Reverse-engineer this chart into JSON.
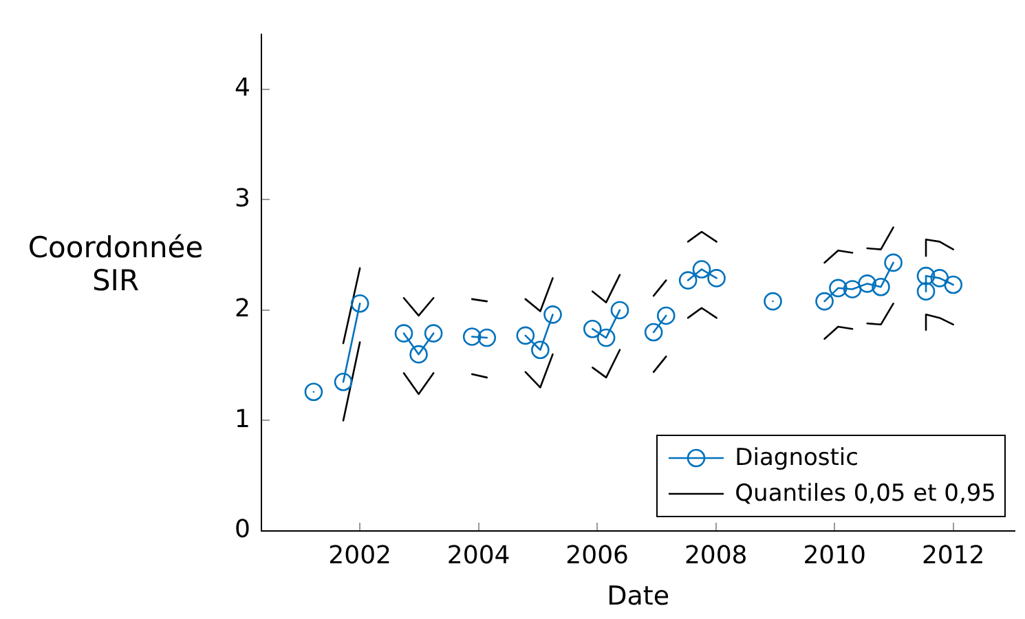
{
  "chart_data": {
    "type": "line",
    "xlabel": "Date",
    "ylabel": "Coordonnée SIR",
    "xlim": [
      2000.34,
      2013.04
    ],
    "xticks": [
      2002,
      2004,
      2006,
      2008,
      2010,
      2012
    ],
    "ylim": [
      0,
      4.5
    ],
    "yticks": [
      0,
      1,
      2,
      3,
      4
    ],
    "grid": false,
    "legend": "bottom right",
    "series": [
      {
        "name": "Diagnostic",
        "color": "#0072bd",
        "marker": "circle",
        "x": [
          2001.22,
          2001.47,
          2001.72,
          2002.0,
          2002.37,
          2002.74,
          2002.99,
          2003.24,
          2003.56,
          2003.89,
          2004.14,
          2004.46,
          2004.79,
          2005.04,
          2005.25,
          2005.58,
          2005.92,
          2006.15,
          2006.38,
          2006.66,
          2006.95,
          2007.16,
          2007.34,
          2007.53,
          2007.76,
          2008.01,
          2008.48,
          2008.96,
          2009.4,
          2009.83,
          2010.06,
          2010.3,
          2010.55,
          2010.78,
          2010.99,
          2011.27,
          2011.54,
          2011.54,
          2011.77,
          2012.0
        ],
        "values": [
          1.26,
          null,
          1.35,
          2.06,
          null,
          1.79,
          1.6,
          1.79,
          null,
          1.76,
          1.75,
          null,
          1.77,
          1.64,
          1.96,
          null,
          1.83,
          1.75,
          2.0,
          null,
          1.8,
          1.95,
          null,
          2.27,
          2.37,
          2.29,
          null,
          2.08,
          null,
          2.08,
          2.2,
          2.19,
          2.24,
          2.21,
          2.43,
          null,
          2.17,
          2.31,
          2.29,
          2.23
        ]
      },
      {
        "name": "Quantiles 0,05 et 0,95",
        "color": "#000000",
        "marker": "none",
        "x": [
          2001.72,
          2002.0,
          2002.37,
          2002.74,
          2002.99,
          2003.24,
          2003.56,
          2003.89,
          2004.14,
          2004.46,
          2004.79,
          2005.04,
          2005.25,
          2005.58,
          2005.92,
          2006.15,
          2006.38,
          2006.66,
          2006.95,
          2007.16,
          2007.34,
          2007.53,
          2007.76,
          2008.01,
          2008.9,
          2009.83,
          2010.06,
          2010.3,
          2010.42,
          2010.55,
          2010.78,
          2010.99,
          2011.27,
          2011.54,
          2011.54,
          2011.77,
          2012.0
        ],
        "values": [
          1.7,
          2.38,
          null,
          2.11,
          1.95,
          2.11,
          null,
          2.1,
          2.08,
          null,
          2.1,
          1.99,
          2.29,
          null,
          2.17,
          2.07,
          2.32,
          null,
          2.13,
          2.27,
          null,
          2.62,
          2.71,
          2.62,
          null,
          2.43,
          2.54,
          2.52,
          null,
          2.56,
          2.55,
          2.75,
          null,
          2.49,
          2.64,
          2.62,
          2.55
        ]
      },
      {
        "color": "#000000",
        "marker": "none",
        "x": [
          2001.72,
          2002.0,
          2002.37,
          2002.74,
          2002.99,
          2003.24,
          2003.56,
          2003.89,
          2004.14,
          2004.46,
          2004.79,
          2005.04,
          2005.25,
          2005.58,
          2005.92,
          2006.15,
          2006.38,
          2006.66,
          2006.95,
          2007.16,
          2007.34,
          2007.53,
          2007.76,
          2008.01,
          2008.9,
          2009.83,
          2010.06,
          2010.3,
          2010.42,
          2010.55,
          2010.78,
          2010.99,
          2011.27,
          2011.54,
          2011.54,
          2011.77,
          2012.0
        ],
        "values": [
          1.0,
          1.71,
          null,
          1.43,
          1.24,
          1.43,
          null,
          1.42,
          1.39,
          null,
          1.44,
          1.3,
          1.6,
          null,
          1.48,
          1.39,
          1.64,
          null,
          1.44,
          1.58,
          null,
          1.93,
          2.02,
          1.93,
          null,
          1.74,
          1.85,
          1.83,
          null,
          1.88,
          1.87,
          2.06,
          null,
          1.82,
          1.96,
          1.93,
          1.87
        ]
      }
    ]
  }
}
